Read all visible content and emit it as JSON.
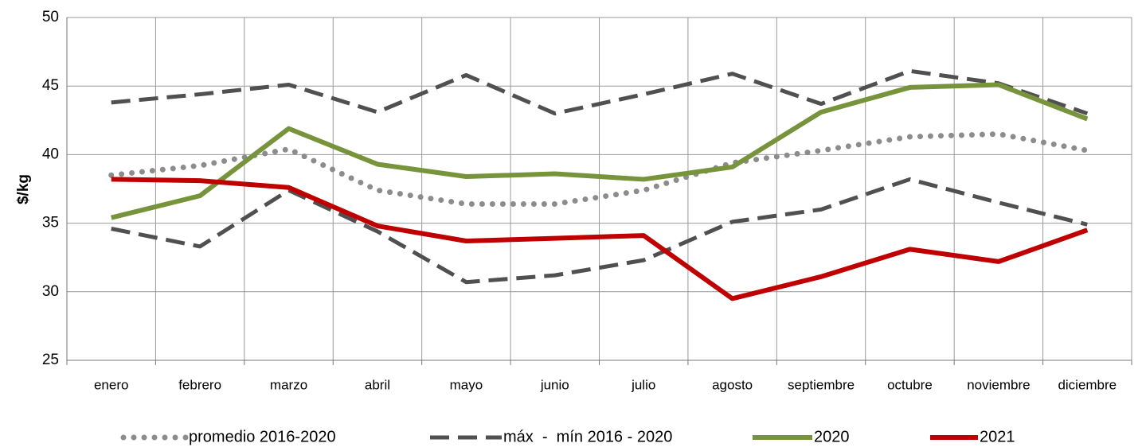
{
  "chart_data": {
    "type": "line",
    "y_label": "$/kg",
    "categories": [
      "enero",
      "febrero",
      "marzo",
      "abril",
      "mayo",
      "junio",
      "julio",
      "agosto",
      "septiembre",
      "octubre",
      "noviembre",
      "diciembre"
    ],
    "series": [
      {
        "name": "promedio 2016-2020",
        "color": "#8c8c8c",
        "dash": "dotted",
        "values": [
          38.5,
          39.2,
          40.4,
          37.4,
          36.4,
          36.4,
          37.4,
          39.4,
          40.3,
          41.3,
          41.5,
          40.3
        ]
      },
      {
        "name": "máx  -  mín 2016 - 2020",
        "color": "#505050",
        "dash": "dashed",
        "values": [
          43.8,
          44.4,
          45.1,
          43.1,
          45.8,
          43.0,
          44.4,
          45.9,
          43.7,
          46.1,
          45.2,
          43.0
        ]
      },
      {
        "color": "#505050",
        "dash": "dashed",
        "values": [
          34.6,
          33.3,
          37.4,
          34.4,
          30.7,
          31.2,
          32.3,
          35.1,
          36.0,
          38.2,
          36.5,
          34.9
        ]
      },
      {
        "name": "2020",
        "color": "#77933c",
        "dash": "solid",
        "values": [
          35.4,
          37.0,
          41.9,
          39.3,
          38.4,
          38.6,
          38.2,
          39.1,
          43.1,
          44.9,
          45.1,
          42.6
        ]
      },
      {
        "name": "2021",
        "color": "#c00000",
        "dash": "solid",
        "values": [
          38.2,
          38.1,
          37.6,
          34.8,
          33.7,
          33.9,
          34.1,
          29.5,
          31.1,
          33.1,
          32.2,
          34.5
        ]
      }
    ],
    "ylim": [
      25,
      50
    ],
    "yticks": [
      25,
      30,
      35,
      40,
      45,
      50
    ],
    "grid": true,
    "legend": "bottom"
  }
}
